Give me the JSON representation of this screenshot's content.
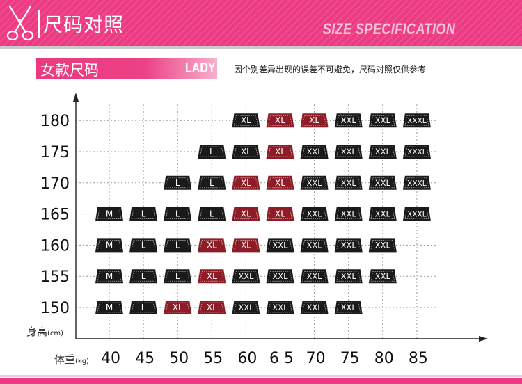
{
  "header": {
    "title": "尺码对照",
    "subtitle": "SIZE SPECIFICATION",
    "icon": "scissors-icon"
  },
  "section": {
    "label": "女款尺码",
    "label_en": "LADY",
    "notice": "因个别差异出现的误差不可避免，尺码对照仅供参考"
  },
  "colors": {
    "pink": "#ec3b83",
    "tag_black": "#1a1a1a",
    "tag_red": "#8e1c26"
  },
  "chart_data": {
    "type": "table",
    "ylabel": "身高",
    "ylabel_unit": "(cm)",
    "xlabel": "体重",
    "xlabel_unit": "(kg)",
    "x": [
      40,
      45,
      50,
      55,
      60,
      65,
      70,
      75,
      80,
      85
    ],
    "x_tick_labels": [
      "40",
      "45",
      "50",
      "55",
      "60",
      "6 5",
      "70",
      "75",
      "80",
      "85"
    ],
    "y": [
      150,
      155,
      160,
      165,
      170,
      175,
      180
    ],
    "grid": true,
    "cells": [
      {
        "h": 180,
        "w": 60,
        "size": "XL",
        "color": "black"
      },
      {
        "h": 180,
        "w": 65,
        "size": "XL",
        "color": "red"
      },
      {
        "h": 180,
        "w": 70,
        "size": "XL",
        "color": "red"
      },
      {
        "h": 180,
        "w": 75,
        "size": "XXL",
        "color": "black"
      },
      {
        "h": 180,
        "w": 80,
        "size": "XXL",
        "color": "black"
      },
      {
        "h": 180,
        "w": 85,
        "size": "XXXL",
        "color": "black"
      },
      {
        "h": 175,
        "w": 55,
        "size": "L",
        "color": "black"
      },
      {
        "h": 175,
        "w": 60,
        "size": "XL",
        "color": "black"
      },
      {
        "h": 175,
        "w": 65,
        "size": "XL",
        "color": "red"
      },
      {
        "h": 175,
        "w": 70,
        "size": "XXL",
        "color": "black"
      },
      {
        "h": 175,
        "w": 75,
        "size": "XXL",
        "color": "black"
      },
      {
        "h": 175,
        "w": 80,
        "size": "XXL",
        "color": "black"
      },
      {
        "h": 175,
        "w": 85,
        "size": "XXXL",
        "color": "black"
      },
      {
        "h": 170,
        "w": 50,
        "size": "L",
        "color": "black"
      },
      {
        "h": 170,
        "w": 55,
        "size": "L",
        "color": "black"
      },
      {
        "h": 170,
        "w": 60,
        "size": "XL",
        "color": "red"
      },
      {
        "h": 170,
        "w": 65,
        "size": "XL",
        "color": "red"
      },
      {
        "h": 170,
        "w": 70,
        "size": "XXL",
        "color": "black"
      },
      {
        "h": 170,
        "w": 75,
        "size": "XXL",
        "color": "black"
      },
      {
        "h": 170,
        "w": 80,
        "size": "XXL",
        "color": "black"
      },
      {
        "h": 170,
        "w": 85,
        "size": "XXXL",
        "color": "black"
      },
      {
        "h": 165,
        "w": 40,
        "size": "M",
        "color": "black"
      },
      {
        "h": 165,
        "w": 45,
        "size": "L",
        "color": "black"
      },
      {
        "h": 165,
        "w": 50,
        "size": "L",
        "color": "black"
      },
      {
        "h": 165,
        "w": 55,
        "size": "L",
        "color": "black"
      },
      {
        "h": 165,
        "w": 60,
        "size": "XL",
        "color": "red"
      },
      {
        "h": 165,
        "w": 65,
        "size": "XL",
        "color": "red"
      },
      {
        "h": 165,
        "w": 70,
        "size": "XXL",
        "color": "black"
      },
      {
        "h": 165,
        "w": 75,
        "size": "XXL",
        "color": "black"
      },
      {
        "h": 165,
        "w": 80,
        "size": "XXL",
        "color": "black"
      },
      {
        "h": 165,
        "w": 85,
        "size": "XXXL",
        "color": "black"
      },
      {
        "h": 160,
        "w": 40,
        "size": "M",
        "color": "black"
      },
      {
        "h": 160,
        "w": 45,
        "size": "L",
        "color": "black"
      },
      {
        "h": 160,
        "w": 50,
        "size": "L",
        "color": "black"
      },
      {
        "h": 160,
        "w": 55,
        "size": "XL",
        "color": "red"
      },
      {
        "h": 160,
        "w": 60,
        "size": "XL",
        "color": "red"
      },
      {
        "h": 160,
        "w": 65,
        "size": "XXL",
        "color": "black"
      },
      {
        "h": 160,
        "w": 70,
        "size": "XXL",
        "color": "black"
      },
      {
        "h": 160,
        "w": 75,
        "size": "XXL",
        "color": "black"
      },
      {
        "h": 160,
        "w": 80,
        "size": "XXL",
        "color": "black"
      },
      {
        "h": 155,
        "w": 40,
        "size": "M",
        "color": "black"
      },
      {
        "h": 155,
        "w": 45,
        "size": "L",
        "color": "black"
      },
      {
        "h": 155,
        "w": 50,
        "size": "L",
        "color": "black"
      },
      {
        "h": 155,
        "w": 55,
        "size": "XL",
        "color": "red"
      },
      {
        "h": 155,
        "w": 60,
        "size": "XXL",
        "color": "black"
      },
      {
        "h": 155,
        "w": 65,
        "size": "XXL",
        "color": "black"
      },
      {
        "h": 155,
        "w": 70,
        "size": "XXL",
        "color": "black"
      },
      {
        "h": 155,
        "w": 75,
        "size": "XXL",
        "color": "black"
      },
      {
        "h": 155,
        "w": 80,
        "size": "XXL",
        "color": "black"
      },
      {
        "h": 150,
        "w": 40,
        "size": "M",
        "color": "black"
      },
      {
        "h": 150,
        "w": 45,
        "size": "L",
        "color": "black"
      },
      {
        "h": 150,
        "w": 50,
        "size": "XL",
        "color": "red"
      },
      {
        "h": 150,
        "w": 55,
        "size": "XL",
        "color": "red"
      },
      {
        "h": 150,
        "w": 60,
        "size": "XXL",
        "color": "black"
      },
      {
        "h": 150,
        "w": 65,
        "size": "XXL",
        "color": "black"
      },
      {
        "h": 150,
        "w": 70,
        "size": "XXL",
        "color": "black"
      },
      {
        "h": 150,
        "w": 75,
        "size": "XXL",
        "color": "black"
      }
    ]
  }
}
